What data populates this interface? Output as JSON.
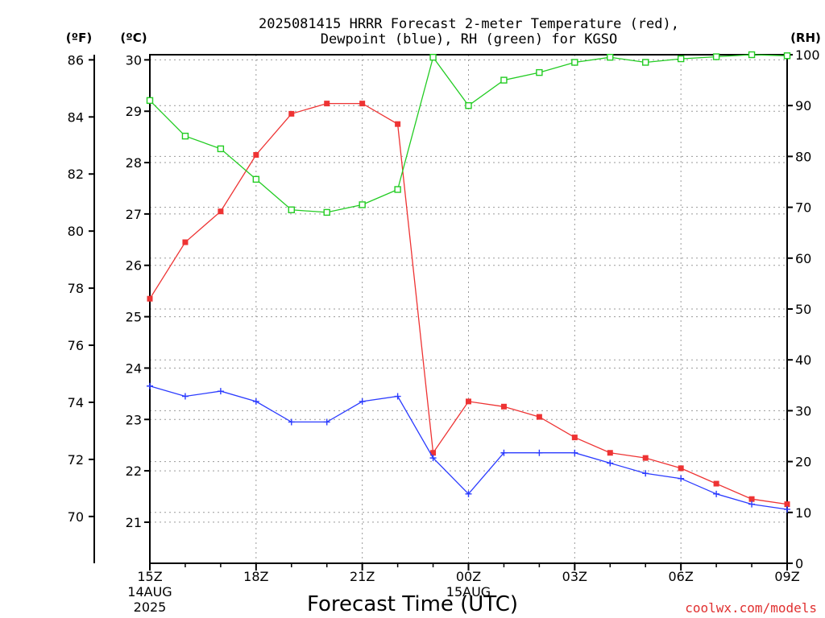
{
  "chart_data": {
    "type": "line",
    "title_line1": "2025081415 HRRR Forecast 2-meter Temperature (red),",
    "title_line2": "Dewpoint (blue), RH (green) for KGSO",
    "unit_f": "(ºF)",
    "unit_c": "(ºC)",
    "unit_rh": "(RH)",
    "xlabel": "Forecast Time (UTC)",
    "credit": "coolwx.com/models",
    "x_hours": [
      0,
      1,
      2,
      3,
      4,
      5,
      6,
      7,
      8,
      9,
      10,
      11,
      12,
      13,
      14,
      15,
      16,
      17,
      18
    ],
    "x_range": [
      0,
      18
    ],
    "x_ticks": [
      {
        "hour": 0,
        "label": "15Z",
        "sub1": "14AUG",
        "sub2": "2025"
      },
      {
        "hour": 3,
        "label": "18Z"
      },
      {
        "hour": 6,
        "label": "21Z"
      },
      {
        "hour": 9,
        "label": "00Z",
        "sub1": "15AUG"
      },
      {
        "hour": 12,
        "label": "03Z"
      },
      {
        "hour": 15,
        "label": "06Z"
      },
      {
        "hour": 18,
        "label": "09Z"
      }
    ],
    "y_celsius_range": [
      20.2,
      30.1
    ],
    "y_celsius_ticks": [
      "21",
      "22",
      "23",
      "24",
      "25",
      "26",
      "27",
      "28",
      "29",
      "30"
    ],
    "y_fahrenheit_ticks": [
      "70",
      "72",
      "74",
      "76",
      "78",
      "80",
      "82",
      "84",
      "86"
    ],
    "y_rh_range": [
      0,
      100
    ],
    "y_rh_ticks": [
      "0",
      "10",
      "20",
      "30",
      "40",
      "50",
      "60",
      "70",
      "80",
      "90",
      "100"
    ],
    "grid": true,
    "series": [
      {
        "name": "Temperature (red)",
        "color": "#ee3333",
        "marker": "filled-square",
        "axis": "celsius",
        "values": [
          25.35,
          26.45,
          27.05,
          28.15,
          28.95,
          29.15,
          29.15,
          28.75,
          22.35,
          23.35,
          23.25,
          23.05,
          22.65,
          22.35,
          22.25,
          22.05,
          21.75,
          21.45,
          21.35
        ]
      },
      {
        "name": "Dewpoint (blue)",
        "color": "#2b3bff",
        "marker": "plus",
        "axis": "celsius",
        "values": [
          23.65,
          23.45,
          23.55,
          23.35,
          22.95,
          22.95,
          23.35,
          23.45,
          22.25,
          21.55,
          22.35,
          22.35,
          22.35,
          22.15,
          21.95,
          21.85,
          21.55,
          21.35,
          21.25
        ]
      },
      {
        "name": "RH (green)",
        "color": "#22cc22",
        "marker": "open-square",
        "axis": "rh",
        "values": [
          91,
          84,
          81.5,
          75.5,
          69.5,
          69,
          70.5,
          73.5,
          99.5,
          90,
          95,
          96.5,
          98.5,
          99.5,
          98.5,
          99.2,
          99.6,
          100,
          99.8
        ]
      }
    ]
  }
}
